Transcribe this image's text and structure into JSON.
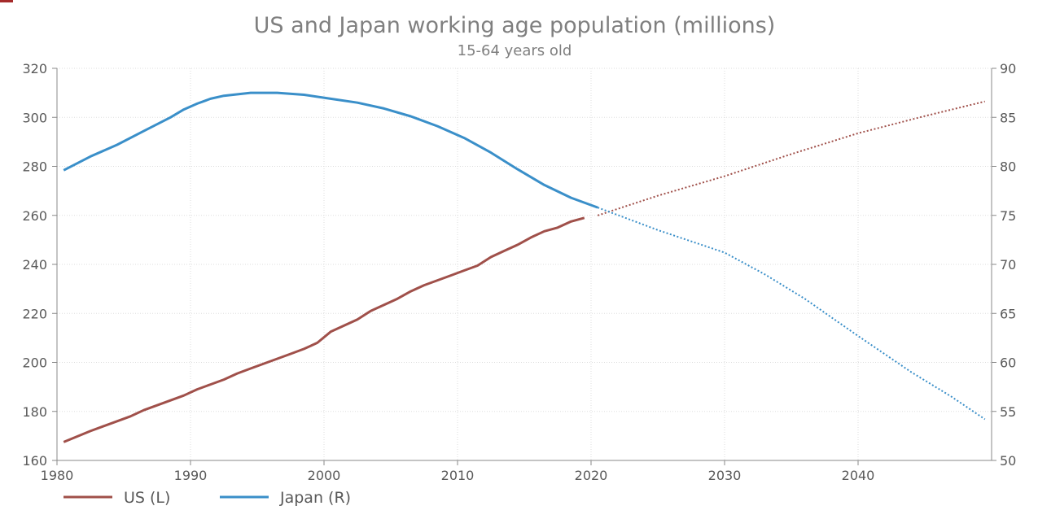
{
  "chart_data": {
    "type": "line",
    "title": "US and Japan working age population (millions)",
    "subtitle": "15-64 years old",
    "x_ticks": [
      "1980",
      "1990",
      "2000",
      "2010",
      "2020",
      "2030",
      "2040"
    ],
    "xlim": [
      1980,
      2050
    ],
    "y_left": {
      "ylim": [
        160,
        320
      ],
      "ticks": [
        "160",
        "180",
        "200",
        "220",
        "240",
        "260",
        "280",
        "300",
        "320"
      ]
    },
    "y_right": {
      "ylim": [
        50,
        90
      ],
      "ticks": [
        "50",
        "55",
        "60",
        "65",
        "70",
        "75",
        "80",
        "85",
        "90"
      ]
    },
    "grid": true,
    "legend_position": "bottom-left",
    "series": [
      {
        "name": "US (L)",
        "axis": "left",
        "color": "#a0504a",
        "actual": {
          "x": [
            1980.5,
            1982.5,
            1983.5,
            1985.5,
            1986.5,
            1987.5,
            1988.5,
            1989.5,
            1990.5,
            1991.5,
            1992.5,
            1993.5,
            1994.5,
            1995.5,
            1996.5,
            1997.5,
            1998.5,
            1999.5,
            2000.5,
            2001.5,
            2002.5,
            2003.5,
            2004.5,
            2005.5,
            2006.5,
            2007.5,
            2008.5,
            2009.5,
            2010.5,
            2011.5,
            2012.5,
            2013.5,
            2014.5,
            2015.5,
            2016.5,
            2017.5,
            2018.5,
            2019.5
          ],
          "y": [
            167.5,
            172,
            174,
            178,
            180.5,
            182.5,
            184.5,
            186.5,
            189,
            191,
            193,
            195.5,
            197.5,
            199.5,
            201.5,
            203.5,
            205.5,
            208,
            212.5,
            215,
            217.5,
            221,
            223.5,
            226,
            229,
            231.5,
            233.5,
            235.5,
            237.5,
            239.5,
            243,
            245.5,
            248,
            251,
            253.5,
            255,
            257.5,
            259
          ]
        },
        "projected": {
          "x": [
            2020.5,
            2025,
            2030,
            2035,
            2040,
            2045,
            2049.5
          ],
          "y": [
            260,
            268,
            276,
            285,
            293.5,
            300.5,
            306.5
          ]
        }
      },
      {
        "name": "Japan (R)",
        "axis": "right",
        "color": "#3a8fc9",
        "actual": {
          "x": [
            1980.5,
            1982.5,
            1984.5,
            1986.5,
            1988.5,
            1989.5,
            1990.5,
            1991.5,
            1992.5,
            1994.5,
            1996.5,
            1998.5,
            2000.5,
            2002.5,
            2004.5,
            2006.5,
            2008.5,
            2010.5,
            2012.5,
            2014.5,
            2016.5,
            2018.5,
            2020.5
          ],
          "y": [
            79.6,
            81,
            82.2,
            83.6,
            85,
            85.8,
            86.4,
            86.9,
            87.2,
            87.5,
            87.5,
            87.3,
            86.9,
            86.5,
            85.9,
            85.1,
            84.1,
            82.9,
            81.4,
            79.7,
            78.1,
            76.8,
            75.8
          ]
        },
        "projected": {
          "x": [
            2020.5,
            2025,
            2030,
            2033,
            2036,
            2040,
            2044,
            2047,
            2049.5
          ],
          "y": [
            75.8,
            73.5,
            71.2,
            69,
            66.5,
            62.7,
            59,
            56.5,
            54.2
          ]
        }
      }
    ]
  }
}
